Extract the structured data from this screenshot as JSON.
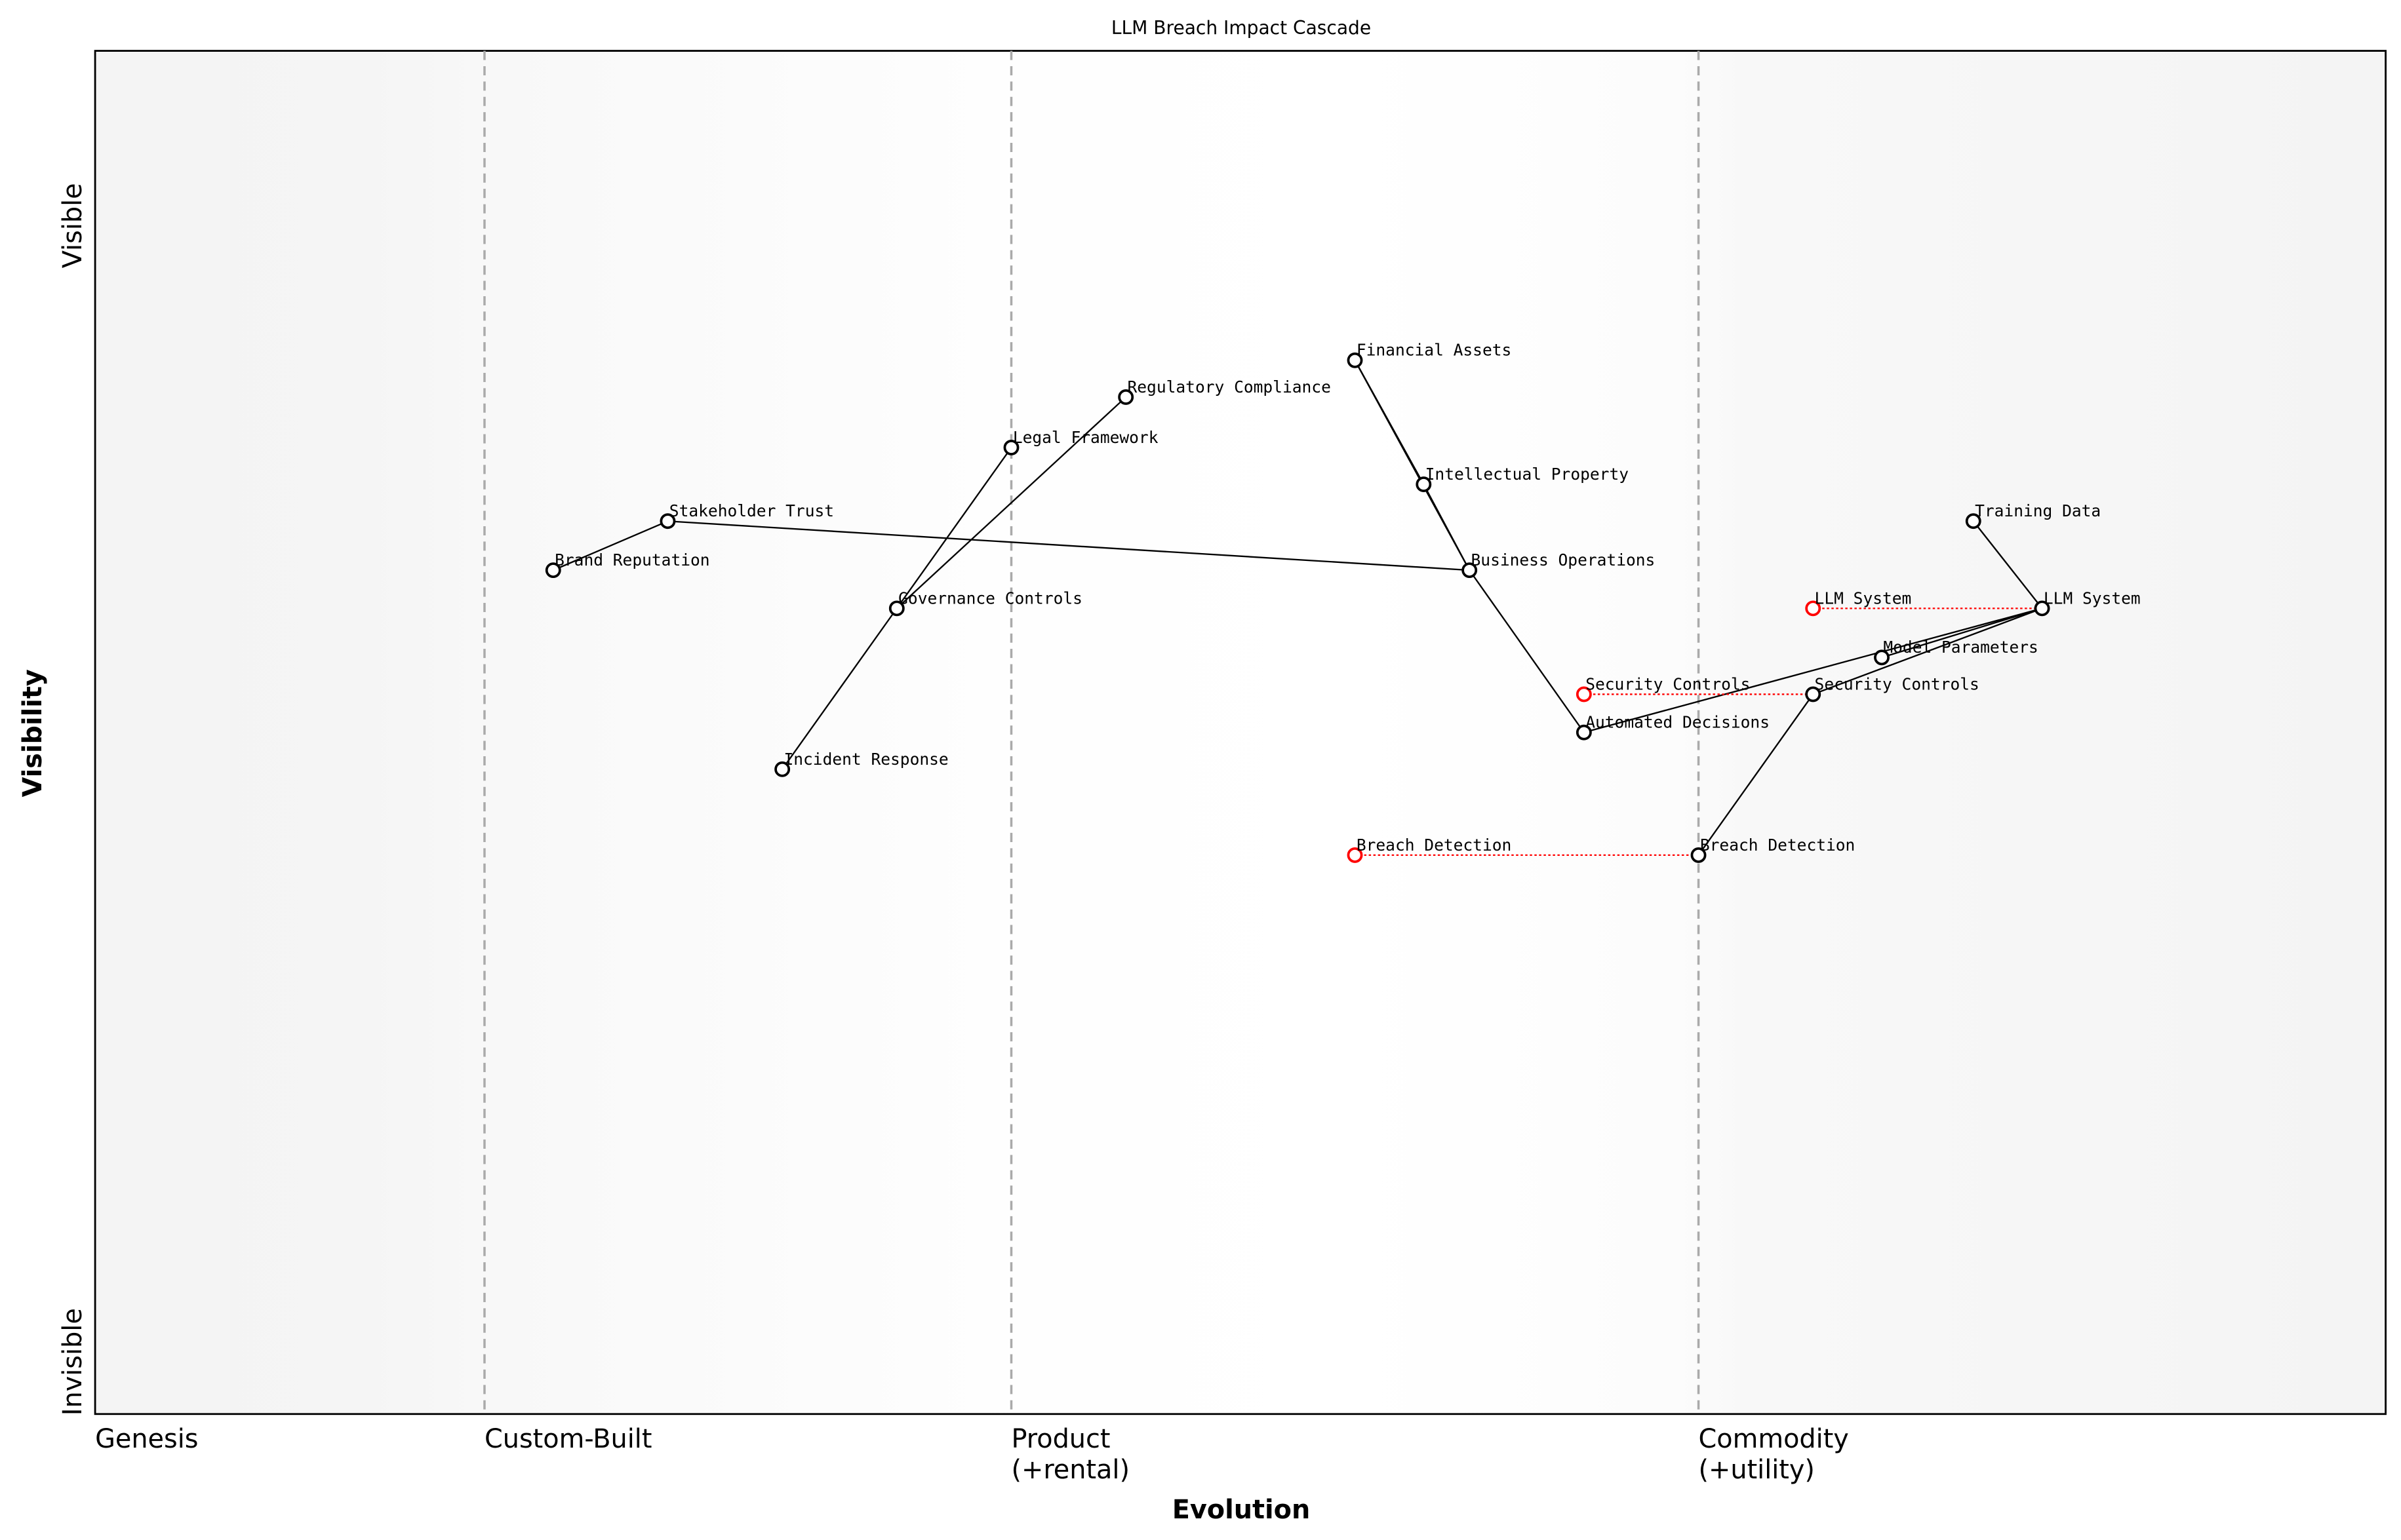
{
  "title": "LLM Breach Impact Cascade",
  "x_axis_label": "Evolution",
  "y_axis_label": "Visibility",
  "y_top_label": "Visible",
  "y_bottom_label": "Invisible",
  "stages": [
    {
      "label": "Genesis",
      "position": 0.0
    },
    {
      "label": "Custom-Built",
      "position": 0.17
    },
    {
      "label": "Product",
      "label2": "(+rental)",
      "position": 0.4
    },
    {
      "label": "Commodity",
      "label2": "(+utility)",
      "position": 0.7
    }
  ],
  "colors": {
    "node": "#000000",
    "evolved_node": "#ff0000",
    "link": "#000000",
    "evolution_link": "#ff0000",
    "stage_divider": "#aaaaaa"
  },
  "components": [
    {
      "id": "financial-assets",
      "label": "Financial Assets",
      "evolution": 0.55,
      "visibility": 0.773
    },
    {
      "id": "regulatory-compliance",
      "label": "Regulatory Compliance",
      "evolution": 0.45,
      "visibility": 0.746
    },
    {
      "id": "legal-framework",
      "label": "Legal Framework",
      "evolution": 0.4,
      "visibility": 0.709
    },
    {
      "id": "intellectual-property",
      "label": "Intellectual Property",
      "evolution": 0.58,
      "visibility": 0.682
    },
    {
      "id": "stakeholder-trust",
      "label": "Stakeholder Trust",
      "evolution": 0.25,
      "visibility": 0.655
    },
    {
      "id": "training-data",
      "label": "Training Data",
      "evolution": 0.82,
      "visibility": 0.655
    },
    {
      "id": "brand-reputation",
      "label": "Brand Reputation",
      "evolution": 0.2,
      "visibility": 0.619
    },
    {
      "id": "business-operations",
      "label": "Business Operations",
      "evolution": 0.6,
      "visibility": 0.619
    },
    {
      "id": "governance-controls",
      "label": "Governance Controls",
      "evolution": 0.35,
      "visibility": 0.591
    },
    {
      "id": "llm-system",
      "label": "LLM System",
      "evolution": 0.85,
      "visibility": 0.591
    },
    {
      "id": "model-parameters",
      "label": "Model Parameters",
      "evolution": 0.78,
      "visibility": 0.555
    },
    {
      "id": "security-controls",
      "label": "Security Controls",
      "evolution": 0.75,
      "visibility": 0.528
    },
    {
      "id": "automated-decisions",
      "label": "Automated Decisions",
      "evolution": 0.65,
      "visibility": 0.5
    },
    {
      "id": "incident-response",
      "label": "Incident Response",
      "evolution": 0.3,
      "visibility": 0.473
    },
    {
      "id": "breach-detection",
      "label": "Breach Detection",
      "evolution": 0.7,
      "visibility": 0.41
    }
  ],
  "evolved_components": [
    {
      "id": "llm-system-prev",
      "label": "LLM System",
      "evolution": 0.75,
      "visibility": 0.591,
      "to": "llm-system"
    },
    {
      "id": "security-controls-prev",
      "label": "Security Controls",
      "evolution": 0.65,
      "visibility": 0.528,
      "to": "security-controls"
    },
    {
      "id": "breach-detection-prev",
      "label": "Breach Detection",
      "evolution": 0.55,
      "visibility": 0.41,
      "to": "breach-detection"
    }
  ],
  "links": [
    [
      "financial-assets",
      "intellectual-property"
    ],
    [
      "financial-assets",
      "business-operations"
    ],
    [
      "intellectual-property",
      "business-operations"
    ],
    [
      "stakeholder-trust",
      "business-operations"
    ],
    [
      "brand-reputation",
      "stakeholder-trust"
    ],
    [
      "business-operations",
      "automated-decisions"
    ],
    [
      "automated-decisions",
      "llm-system"
    ],
    [
      "model-parameters",
      "llm-system"
    ],
    [
      "security-controls",
      "llm-system"
    ],
    [
      "training-data",
      "llm-system"
    ],
    [
      "breach-detection",
      "security-controls"
    ],
    [
      "legal-framework",
      "governance-controls"
    ],
    [
      "regulatory-compliance",
      "governance-controls"
    ],
    [
      "governance-controls",
      "incident-response"
    ]
  ]
}
